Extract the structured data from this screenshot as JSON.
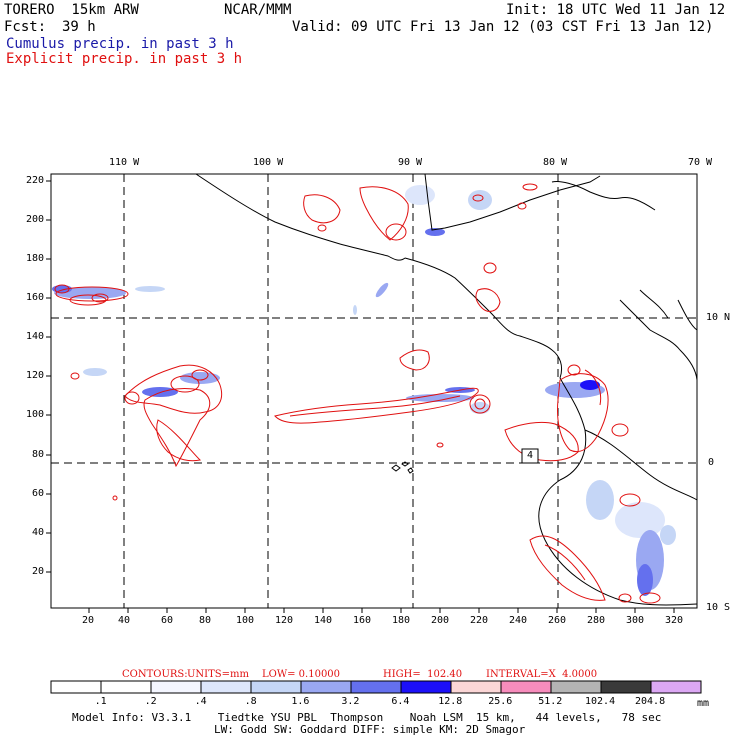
{
  "header": {
    "model": "TORERO  15km ARW",
    "org": "NCAR/MMM",
    "init": "Init: 18 UTC Wed 11 Jan 12",
    "fcst_label": "Fcst:",
    "fcst_value": "39 h",
    "valid": "Valid: 09 UTC Fri 13 Jan 12 (03 CST Fri 13 Jan 12)",
    "line_cumulus": "Cumulus precip. in past 3 h",
    "line_explicit": "Explicit precip. in past 3 h"
  },
  "colors": {
    "cumulus_text": "#1a1aa8",
    "explicit_text": "#e01010",
    "contour": "#e01010",
    "coast": "#000000"
  },
  "lon_labels": [
    "110 W",
    "100 W",
    "90 W",
    "80 W",
    "70 W"
  ],
  "lat_labels": [
    "10 N",
    "0",
    "10 S"
  ],
  "y_ticks": [
    "220",
    "200",
    "180",
    "160",
    "140",
    "120",
    "100",
    "80",
    "60",
    "40",
    "20"
  ],
  "x_ticks": [
    "20",
    "40",
    "60",
    "80",
    "100",
    "120",
    "140",
    "160",
    "180",
    "200",
    "220",
    "240",
    "260",
    "280",
    "300",
    "320"
  ],
  "contour_label": "4",
  "contours_line": {
    "title": "CONTOURS:",
    "units": "UNITS=mm",
    "low": "LOW= 0.10000",
    "high": "HIGH=  102.40",
    "interval": "INTERVAL=X  4.0000"
  },
  "colorbar": {
    "unit": "mm",
    "levels": [
      ".1",
      ".2",
      ".4",
      ".8",
      "1.6",
      "3.2",
      "6.4",
      "12.8",
      "25.6",
      "51.2",
      "102.4",
      "204.8"
    ],
    "colors": [
      "#ffffff",
      "#ffffff",
      "#f4f6ff",
      "#dde6fb",
      "#c5d6f6",
      "#9aa8f2",
      "#6470ee",
      "#1c10f8",
      "#fbd6d6",
      "#f78cbc",
      "#b4b4b4",
      "#3a3a3a",
      "#dca8f4"
    ]
  },
  "footer": {
    "line1": "Model Info: V3.3.1    Tiedtke YSU PBL  Thompson    Noah LSM  15 km,   44 levels,   78 sec",
    "line2": "LW: Godd SW: Goddard DIFF: simple KM: 2D Smagor"
  }
}
